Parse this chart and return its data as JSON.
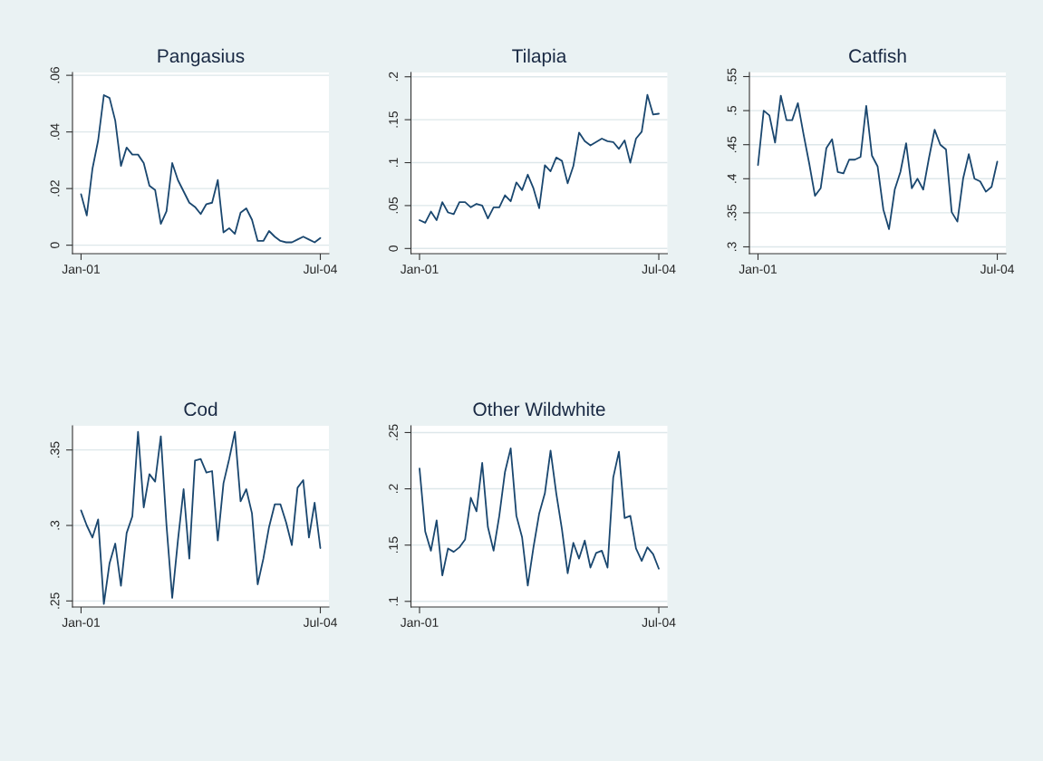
{
  "chart_data": [
    {
      "type": "line",
      "title": "Pangasius",
      "color": "#1a476f",
      "grid": "y",
      "ylim": [
        -0.003,
        0.061
      ],
      "yticks": [
        0,
        {
          "value": 0.02,
          "label": ".02"
        },
        {
          "value": 0.04,
          "label": ".04"
        },
        {
          "value": 0.06,
          "label": ".06"
        }
      ],
      "categories": [
        "Jan-01",
        null,
        null,
        null,
        null,
        null,
        null,
        null,
        null,
        null,
        null,
        null,
        null,
        null,
        null,
        null,
        null,
        null,
        null,
        null,
        null,
        null,
        null,
        null,
        null,
        null,
        null,
        null,
        null,
        null,
        null,
        null,
        null,
        null,
        null,
        null,
        null,
        null,
        null,
        null,
        null,
        null,
        "Jul-04"
      ],
      "values": [
        0.018,
        0.0105,
        0.027,
        0.037,
        0.053,
        0.052,
        0.044,
        0.028,
        0.0345,
        0.032,
        0.032,
        0.029,
        0.021,
        0.0195,
        0.0075,
        0.012,
        0.029,
        0.023,
        0.019,
        0.015,
        0.0135,
        0.011,
        0.0145,
        0.015,
        0.023,
        0.0045,
        0.006,
        0.004,
        0.0115,
        0.013,
        0.009,
        0.0015,
        0.0015,
        0.005,
        0.003,
        0.0015,
        0.001,
        0.001,
        0.002,
        0.003,
        0.002,
        0.001,
        0.0025
      ]
    },
    {
      "type": "line",
      "title": "Tilapia",
      "color": "#1a476f",
      "grid": "y",
      "ylim": [
        -0.006,
        0.205
      ],
      "yticks": [
        0,
        {
          "value": 0.05,
          "label": ".05"
        },
        {
          "value": 0.1,
          "label": ".1"
        },
        {
          "value": 0.15,
          "label": ".15"
        },
        {
          "value": 0.2,
          "label": ".2"
        }
      ],
      "categories": [
        "Jan-01",
        null,
        null,
        null,
        null,
        null,
        null,
        null,
        null,
        null,
        null,
        null,
        null,
        null,
        null,
        null,
        null,
        null,
        null,
        null,
        null,
        null,
        null,
        null,
        null,
        null,
        null,
        null,
        null,
        null,
        null,
        null,
        null,
        null,
        null,
        null,
        null,
        null,
        null,
        null,
        null,
        null,
        "Jul-04"
      ],
      "values": [
        0.033,
        0.03,
        0.043,
        0.033,
        0.054,
        0.042,
        0.04,
        0.054,
        0.054,
        0.048,
        0.052,
        0.05,
        0.035,
        0.048,
        0.048,
        0.062,
        0.055,
        0.077,
        0.068,
        0.086,
        0.07,
        0.047,
        0.097,
        0.09,
        0.106,
        0.102,
        0.076,
        0.096,
        0.135,
        0.125,
        0.12,
        0.124,
        0.128,
        0.125,
        0.124,
        0.116,
        0.126,
        0.1,
        0.128,
        0.136,
        0.179,
        0.156,
        0.157
      ]
    },
    {
      "type": "line",
      "title": "Catfish",
      "color": "#1a476f",
      "grid": "y",
      "ylim": [
        0.29,
        0.556
      ],
      "yticks": [
        {
          "value": 0.3,
          "label": ".3"
        },
        {
          "value": 0.35,
          "label": ".35"
        },
        {
          "value": 0.4,
          "label": ".4"
        },
        {
          "value": 0.45,
          "label": ".45"
        },
        {
          "value": 0.5,
          "label": ".5"
        },
        {
          "value": 0.55,
          "label": ".55"
        }
      ],
      "categories": [
        "Jan-01",
        null,
        null,
        null,
        null,
        null,
        null,
        null,
        null,
        null,
        null,
        null,
        null,
        null,
        null,
        null,
        null,
        null,
        null,
        null,
        null,
        null,
        null,
        null,
        null,
        null,
        null,
        null,
        null,
        null,
        null,
        null,
        null,
        null,
        null,
        null,
        null,
        null,
        null,
        null,
        null,
        null,
        "Jul-04"
      ],
      "values": [
        0.42,
        0.5,
        0.493,
        0.453,
        0.522,
        0.486,
        0.486,
        0.511,
        0.465,
        0.422,
        0.375,
        0.386,
        0.445,
        0.458,
        0.41,
        0.408,
        0.428,
        0.428,
        0.432,
        0.507,
        0.434,
        0.418,
        0.355,
        0.326,
        0.384,
        0.41,
        0.452,
        0.386,
        0.4,
        0.384,
        0.43,
        0.472,
        0.45,
        0.443,
        0.351,
        0.337,
        0.4,
        0.436,
        0.4,
        0.396,
        0.381,
        0.388,
        0.425
      ]
    },
    {
      "type": "line",
      "title": "Cod",
      "color": "#1a476f",
      "grid": "y",
      "ylim": [
        0.246,
        0.366
      ],
      "yticks": [
        {
          "value": 0.25,
          "label": ".25"
        },
        {
          "value": 0.3,
          "label": ".3"
        },
        {
          "value": 0.35,
          "label": ".35"
        }
      ],
      "categories": [
        "Jan-01",
        null,
        null,
        null,
        null,
        null,
        null,
        null,
        null,
        null,
        null,
        null,
        null,
        null,
        null,
        null,
        null,
        null,
        null,
        null,
        null,
        null,
        null,
        null,
        null,
        null,
        null,
        null,
        null,
        null,
        null,
        null,
        null,
        null,
        null,
        null,
        null,
        null,
        null,
        null,
        null,
        null,
        "Jul-04"
      ],
      "values": [
        0.31,
        0.3,
        0.292,
        0.304,
        0.248,
        0.275,
        0.288,
        0.26,
        0.295,
        0.306,
        0.362,
        0.312,
        0.334,
        0.329,
        0.359,
        0.3,
        0.252,
        0.29,
        0.324,
        0.278,
        0.343,
        0.344,
        0.335,
        0.336,
        0.29,
        0.328,
        0.344,
        0.362,
        0.316,
        0.324,
        0.308,
        0.261,
        0.278,
        0.299,
        0.314,
        0.314,
        0.302,
        0.287,
        0.325,
        0.33,
        0.292,
        0.315,
        0.285
      ]
    },
    {
      "type": "line",
      "title": "Other Wildwhite",
      "color": "#1a476f",
      "grid": "y",
      "ylim": [
        0.095,
        0.256
      ],
      "yticks": [
        {
          "value": 0.1,
          "label": ".1"
        },
        {
          "value": 0.15,
          "label": ".15"
        },
        {
          "value": 0.2,
          "label": ".2"
        },
        {
          "value": 0.25,
          "label": ".25"
        }
      ],
      "categories": [
        "Jan-01",
        null,
        null,
        null,
        null,
        null,
        null,
        null,
        null,
        null,
        null,
        null,
        null,
        null,
        null,
        null,
        null,
        null,
        null,
        null,
        null,
        null,
        null,
        null,
        null,
        null,
        null,
        null,
        null,
        null,
        null,
        null,
        null,
        null,
        null,
        null,
        null,
        null,
        null,
        null,
        null,
        null,
        "Jul-04"
      ],
      "values": [
        0.218,
        0.162,
        0.145,
        0.172,
        0.123,
        0.147,
        0.144,
        0.148,
        0.155,
        0.192,
        0.18,
        0.223,
        0.166,
        0.145,
        0.176,
        0.215,
        0.236,
        0.176,
        0.157,
        0.114,
        0.148,
        0.178,
        0.196,
        0.234,
        0.196,
        0.164,
        0.125,
        0.152,
        0.138,
        0.154,
        0.13,
        0.143,
        0.145,
        0.13,
        0.21,
        0.233,
        0.174,
        0.176,
        0.147,
        0.136,
        0.148,
        0.142,
        0.129
      ]
    }
  ]
}
